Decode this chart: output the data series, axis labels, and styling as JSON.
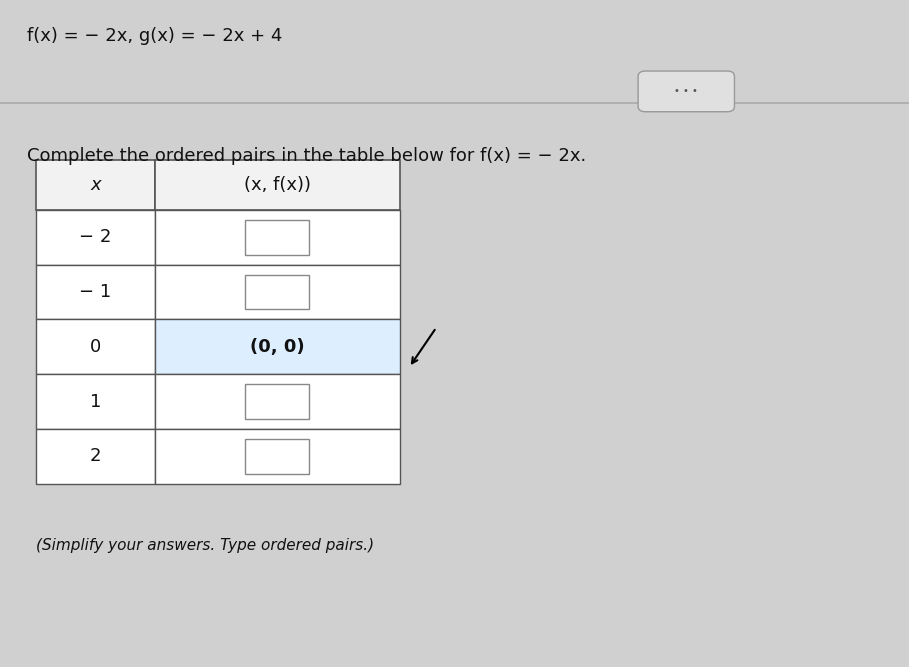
{
  "title_text": "f(x) = − 2x, g(x) = − 2x + 4",
  "instruction_text": "Complete the ordered pairs in the table below for f(x) = − 2x.",
  "footnote_text": "(Simplify your answers. Type ordered pairs.)",
  "col1_header": "x",
  "col2_header": "(x, f(x))",
  "x_values": [
    "− 2",
    "− 1",
    "0",
    "1",
    "2"
  ],
  "fx_values": [
    "",
    "",
    "(0, 0)",
    "",
    ""
  ],
  "filled_row": 2,
  "background_color": "#d0d0d0",
  "table_bg": "#ffffff",
  "header_bg": "#f2f2f2",
  "filled_cell_bg": "#ddeeff",
  "border_color": "#555555",
  "text_color": "#111111",
  "title_fontsize": 13,
  "instruction_fontsize": 13,
  "footnote_fontsize": 11,
  "table_fontsize": 13,
  "ellipsis_button_color": "#e0e0e0",
  "separator_line_color": "#aaaaaa"
}
